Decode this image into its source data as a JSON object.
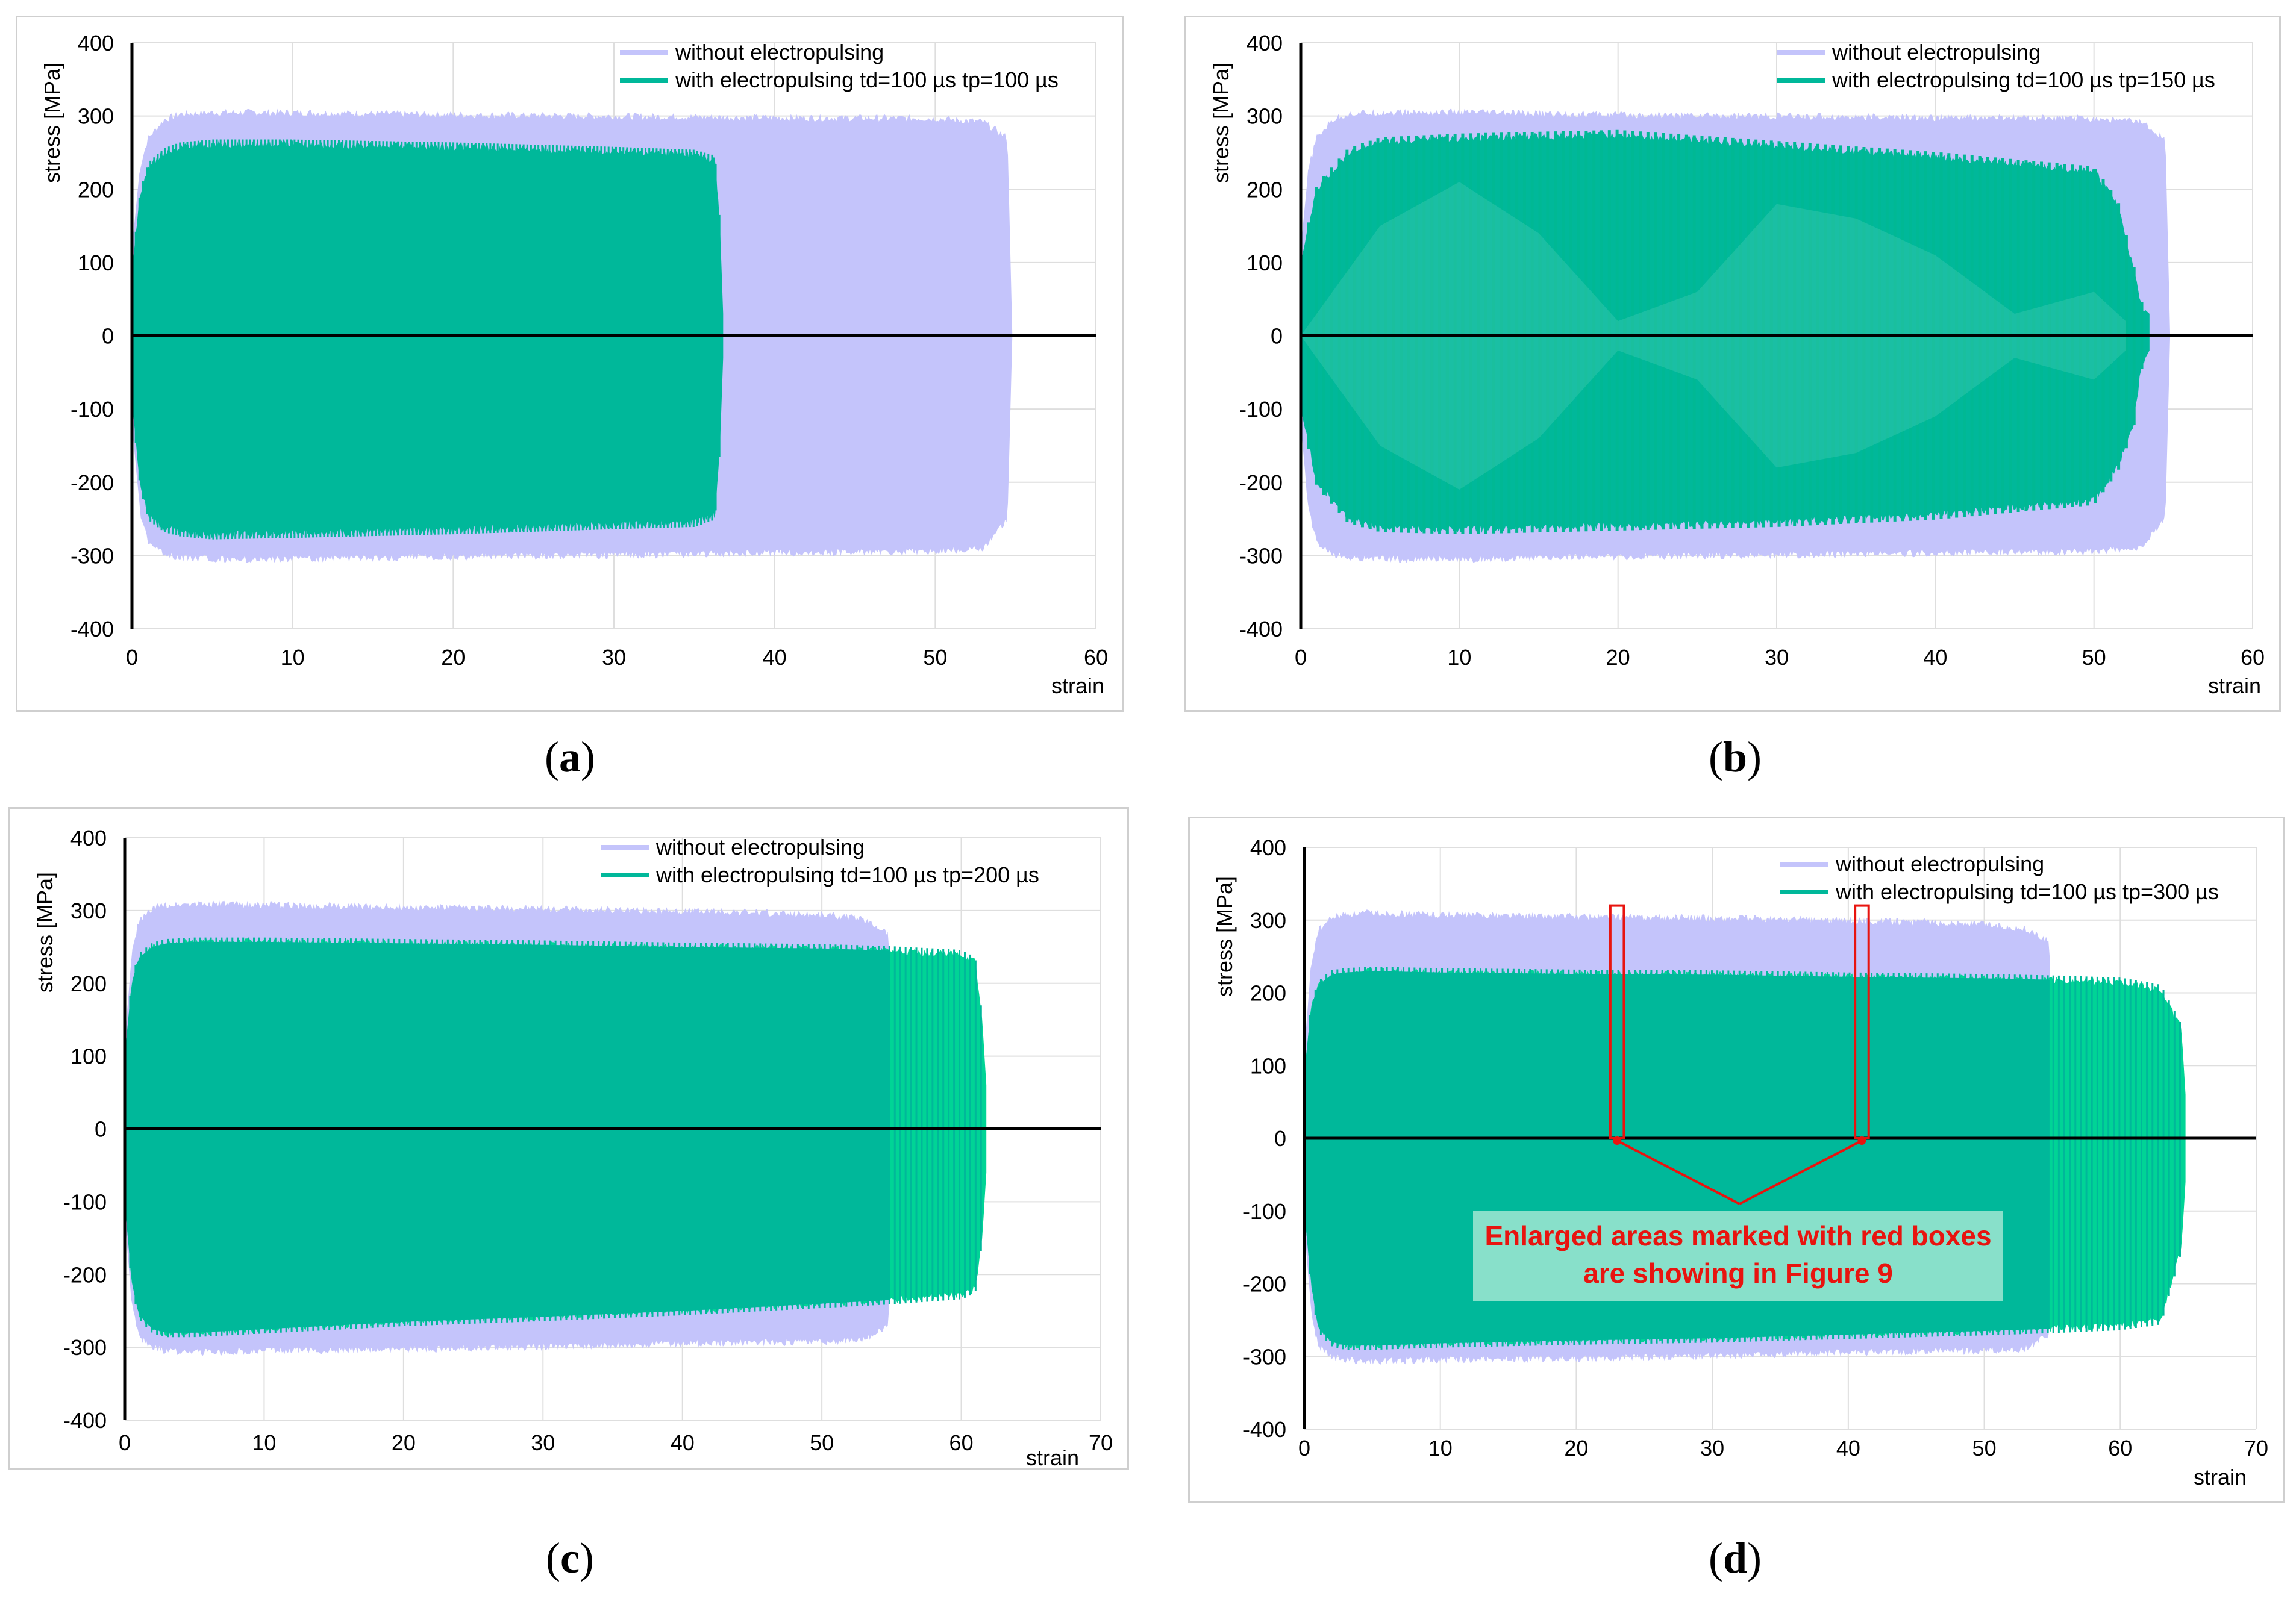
{
  "colors": {
    "without": "#c4c4fb",
    "with": "#00b89a",
    "with_light": "#00d496",
    "axis": "#000000",
    "grid": "#dedede",
    "annotation_red": "#e8140f"
  },
  "panels": [
    {
      "id": "a",
      "caption": "a",
      "chart_data": {
        "type": "area",
        "title": "",
        "xlabel": "strain",
        "ylabel": "stress [MPa]",
        "xlim": [
          0,
          60
        ],
        "ylim": [
          -400,
          400
        ],
        "xticks": [
          "0",
          "10",
          "20",
          "30",
          "40",
          "50",
          "60"
        ],
        "yticks": [
          "400",
          "300",
          "200",
          "100",
          "0",
          "-100",
          "-200",
          "-300",
          "-400"
        ],
        "legend": [
          "without electropulsing",
          "with electropulsing  td=100 µs  tp=100 µs"
        ],
        "series": [
          {
            "name": "without electropulsing",
            "x": [
              0,
              0.5,
              1,
              2,
              3,
              5,
              10,
              20,
              30,
              40,
              50,
              53,
              54.5,
              54.8
            ],
            "upper": [
              120,
              230,
              270,
              295,
              303,
              305,
              305,
              302,
              300,
              298,
              297,
              292,
              270,
              0
            ],
            "lower": [
              -120,
              -240,
              -280,
              -298,
              -303,
              -305,
              -305,
              -302,
              -300,
              -297,
              -295,
              -290,
              -250,
              0
            ]
          },
          {
            "name": "with electropulsing  td=100 µs  tp=100 µs",
            "x": [
              0,
              0.5,
              1,
              2,
              3,
              5,
              10,
              20,
              30,
              35,
              36.3,
              36.6,
              36.8
            ],
            "upper": [
              90,
              190,
              230,
              250,
              258,
              262,
              262,
              258,
              252,
              248,
              240,
              150,
              30
            ],
            "lower": [
              -90,
              -200,
              -245,
              -262,
              -268,
              -272,
              -270,
              -265,
              -258,
              -255,
              -245,
              -150,
              -30
            ]
          }
        ],
        "x_axis_line_extends_to": 60
      }
    },
    {
      "id": "b",
      "caption": "b",
      "chart_data": {
        "type": "area",
        "title": "",
        "xlabel": "strain",
        "ylabel": "stress [MPa]",
        "xlim": [
          0,
          60
        ],
        "ylim": [
          -400,
          400
        ],
        "xticks": [
          "0",
          "10",
          "20",
          "30",
          "40",
          "50",
          "60"
        ],
        "yticks": [
          "400",
          "300",
          "200",
          "100",
          "0",
          "-100",
          "-200",
          "-300",
          "-400"
        ],
        "legend": [
          "without electropulsing",
          "with electropulsing  td=100 µs  tp=150 µs"
        ],
        "series": [
          {
            "name": "without electropulsing",
            "x": [
              0,
              0.5,
              1,
              2,
              3,
              5,
              10,
              20,
              30,
              40,
              50,
              53,
              54.5,
              54.8
            ],
            "upper": [
              120,
              230,
              270,
              295,
              303,
              305,
              305,
              302,
              300,
              298,
              297,
              292,
              270,
              0
            ],
            "lower": [
              -120,
              -240,
              -280,
              -298,
              -303,
              -305,
              -305,
              -302,
              -300,
              -297,
              -295,
              -290,
              -250,
              0
            ]
          },
          {
            "name": "with electropulsing  td=100 µs  tp=150 µs",
            "x": [
              0,
              1,
              3,
              5,
              10,
              20,
              30,
              40,
              50,
              51.5,
              52.5,
              53,
              53.5
            ],
            "upper": [
              100,
              200,
              250,
              265,
              270,
              275,
              260,
              245,
              225,
              180,
              90,
              40,
              30
            ],
            "lower": [
              -100,
              -200,
              -250,
              -262,
              -265,
              -260,
              -255,
              -245,
              -225,
              -180,
              -120,
              -40,
              -20
            ],
            "inner_envelope": {
              "x": [
                0,
                5,
                10,
                15,
                20,
                25,
                30,
                35,
                40,
                45,
                50,
                52
              ],
              "upper": [
                0,
                150,
                210,
                140,
                20,
                60,
                180,
                160,
                110,
                30,
                60,
                20
              ],
              "lower": [
                0,
                -150,
                -210,
                -140,
                -20,
                -60,
                -180,
                -160,
                -110,
                -30,
                -60,
                -20
              ]
            }
          }
        ],
        "x_axis_line_extends_to": 60
      }
    },
    {
      "id": "c",
      "caption": "c",
      "chart_data": {
        "type": "area",
        "title": "",
        "xlabel": "strain",
        "ylabel": "stress  [MPa]",
        "xlim": [
          0,
          70
        ],
        "ylim": [
          -400,
          400
        ],
        "xticks": [
          "0",
          "10",
          "20",
          "30",
          "40",
          "50",
          "60",
          "70"
        ],
        "yticks": [
          "400",
          "300",
          "200",
          "100",
          "0",
          "-100",
          "-200",
          "-300",
          "-400"
        ],
        "legend": [
          "without electropulsing",
          "with electropulsing  td=100 µs  tp=200 µs"
        ],
        "series": [
          {
            "name": "without electropulsing",
            "x": [
              0,
              0.5,
              1,
              2,
              3,
              5,
              10,
              20,
              30,
              40,
              50,
              53,
              54.8,
              55
            ],
            "upper": [
              120,
              240,
              285,
              303,
              308,
              310,
              308,
              305,
              303,
              300,
              295,
              288,
              270,
              0
            ],
            "lower": [
              -120,
              -240,
              -285,
              -300,
              -305,
              -307,
              -305,
              -303,
              -300,
              -295,
              -293,
              -290,
              -270,
              0
            ]
          },
          {
            "name": "with electropulsing  td=100 µs  tp=200 µs",
            "x": [
              0,
              0.5,
              1,
              2,
              3,
              5,
              10,
              20,
              30,
              40,
              50,
              55,
              60,
              61,
              61.5,
              61.8
            ],
            "upper": [
              100,
              200,
              235,
              250,
              255,
              257,
              257,
              255,
              253,
              250,
              248,
              245,
              240,
              230,
              150,
              60
            ],
            "lower": [
              -100,
              -210,
              -255,
              -275,
              -280,
              -280,
              -275,
              -265,
              -258,
              -250,
              -240,
              -235,
              -228,
              -220,
              -150,
              -60
            ]
          }
        ],
        "x_axis_line_extends_to": 70
      }
    },
    {
      "id": "d",
      "caption": "d",
      "chart_data": {
        "type": "area",
        "title": "",
        "xlabel": "strain",
        "ylabel": "stress  [MPa]",
        "xlim": [
          0,
          70
        ],
        "ylim": [
          -400,
          400
        ],
        "xticks": [
          "0",
          "10",
          "20",
          "30",
          "40",
          "50",
          "60",
          "70"
        ],
        "yticks": [
          "400",
          "300",
          "200",
          "100",
          "0",
          "-100",
          "-200",
          "-300",
          "-400"
        ],
        "legend": [
          "without electropulsing",
          "with electropulsing  td=100 µs  tp=300 µs"
        ],
        "series": [
          {
            "name": "without electropulsing",
            "x": [
              0,
              0.5,
              1,
              2,
              3,
              5,
              10,
              20,
              30,
              40,
              50,
              53,
              54.8,
              55
            ],
            "upper": [
              120,
              240,
              285,
              303,
              308,
              310,
              308,
              305,
              303,
              300,
              295,
              288,
              270,
              0
            ],
            "lower": [
              -120,
              -240,
              -285,
              -300,
              -305,
              -307,
              -305,
              -303,
              -300,
              -295,
              -293,
              -290,
              -270,
              0
            ]
          },
          {
            "name": "with electropulsing  td=100 µs  tp=300 µs",
            "x": [
              0,
              0.5,
              1,
              2,
              3,
              5,
              10,
              20,
              30,
              40,
              50,
              55,
              60,
              63,
              64.5,
              64.8
            ],
            "upper": [
              90,
              180,
              210,
              225,
              228,
              230,
              228,
              226,
              225,
              222,
              220,
              218,
              215,
              205,
              150,
              60
            ],
            "lower": [
              -100,
              -200,
              -260,
              -280,
              -285,
              -285,
              -282,
              -278,
              -275,
              -270,
              -265,
              -262,
              -258,
              -250,
              -150,
              -60
            ]
          }
        ],
        "x_axis_line_extends_to": 70,
        "annotations": {
          "text_line1": "Enlarged areas marked with red boxes",
          "text_line2": "are showing in Figure 9",
          "red_boxes_x": [
            [
              22.5,
              23.5
            ],
            [
              40.5,
              41.5
            ]
          ],
          "red_boxes_y": [
            0,
            320
          ]
        }
      }
    }
  ]
}
